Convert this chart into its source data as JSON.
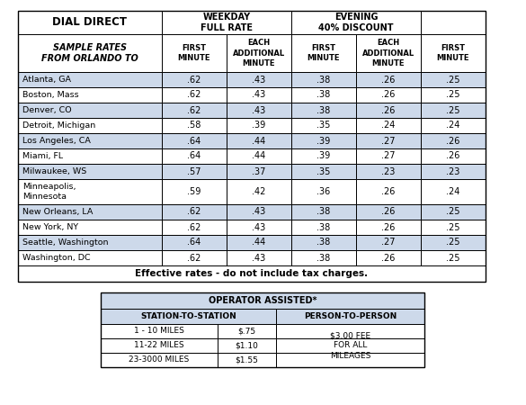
{
  "bg_color": "#ffffff",
  "rows": [
    [
      "Atlanta, GA",
      ".62",
      ".43",
      ".38",
      ".26",
      ".25"
    ],
    [
      "Boston, Mass",
      ".62",
      ".43",
      ".38",
      ".26",
      ".25"
    ],
    [
      "Denver, CO",
      ".62",
      ".43",
      ".38",
      ".26",
      ".25"
    ],
    [
      "Detroit, Michigan",
      ".58",
      ".39",
      ".35",
      ".24",
      ".24"
    ],
    [
      "Los Angeles, CA",
      ".64",
      ".44",
      ".39",
      ".27",
      ".26"
    ],
    [
      "Miami, FL",
      ".64",
      ".44",
      ".39",
      ".27",
      ".26"
    ],
    [
      "Milwaukee, WS",
      ".57",
      ".37",
      ".35",
      ".23",
      ".23"
    ],
    [
      "Minneapolis,\nMinnesota",
      ".59",
      ".42",
      ".36",
      ".26",
      ".24"
    ],
    [
      "New Orleans, LA",
      ".62",
      ".43",
      ".38",
      ".26",
      ".25"
    ],
    [
      "New York, NY",
      ".62",
      ".43",
      ".38",
      ".26",
      ".25"
    ],
    [
      "Seattle, Washington",
      ".64",
      ".44",
      ".38",
      ".27",
      ".25"
    ],
    [
      "Washington, DC",
      ".62",
      ".43",
      ".38",
      ".26",
      ".25"
    ]
  ],
  "footer_text": "Effective rates - do not include tax charges.",
  "operator_header": "OPERATOR ASSISTED*",
  "operator_rows": [
    [
      "1 - 10 MILES",
      "$.75"
    ],
    [
      "11-22 MILES",
      "$1.10"
    ],
    [
      "23-3000 MILES",
      "$1.55"
    ]
  ],
  "person_text": "$3.00 FEE\nFOR ALL\nMILEAGES",
  "light_col": "#cdd9ea",
  "white": "#ffffff"
}
